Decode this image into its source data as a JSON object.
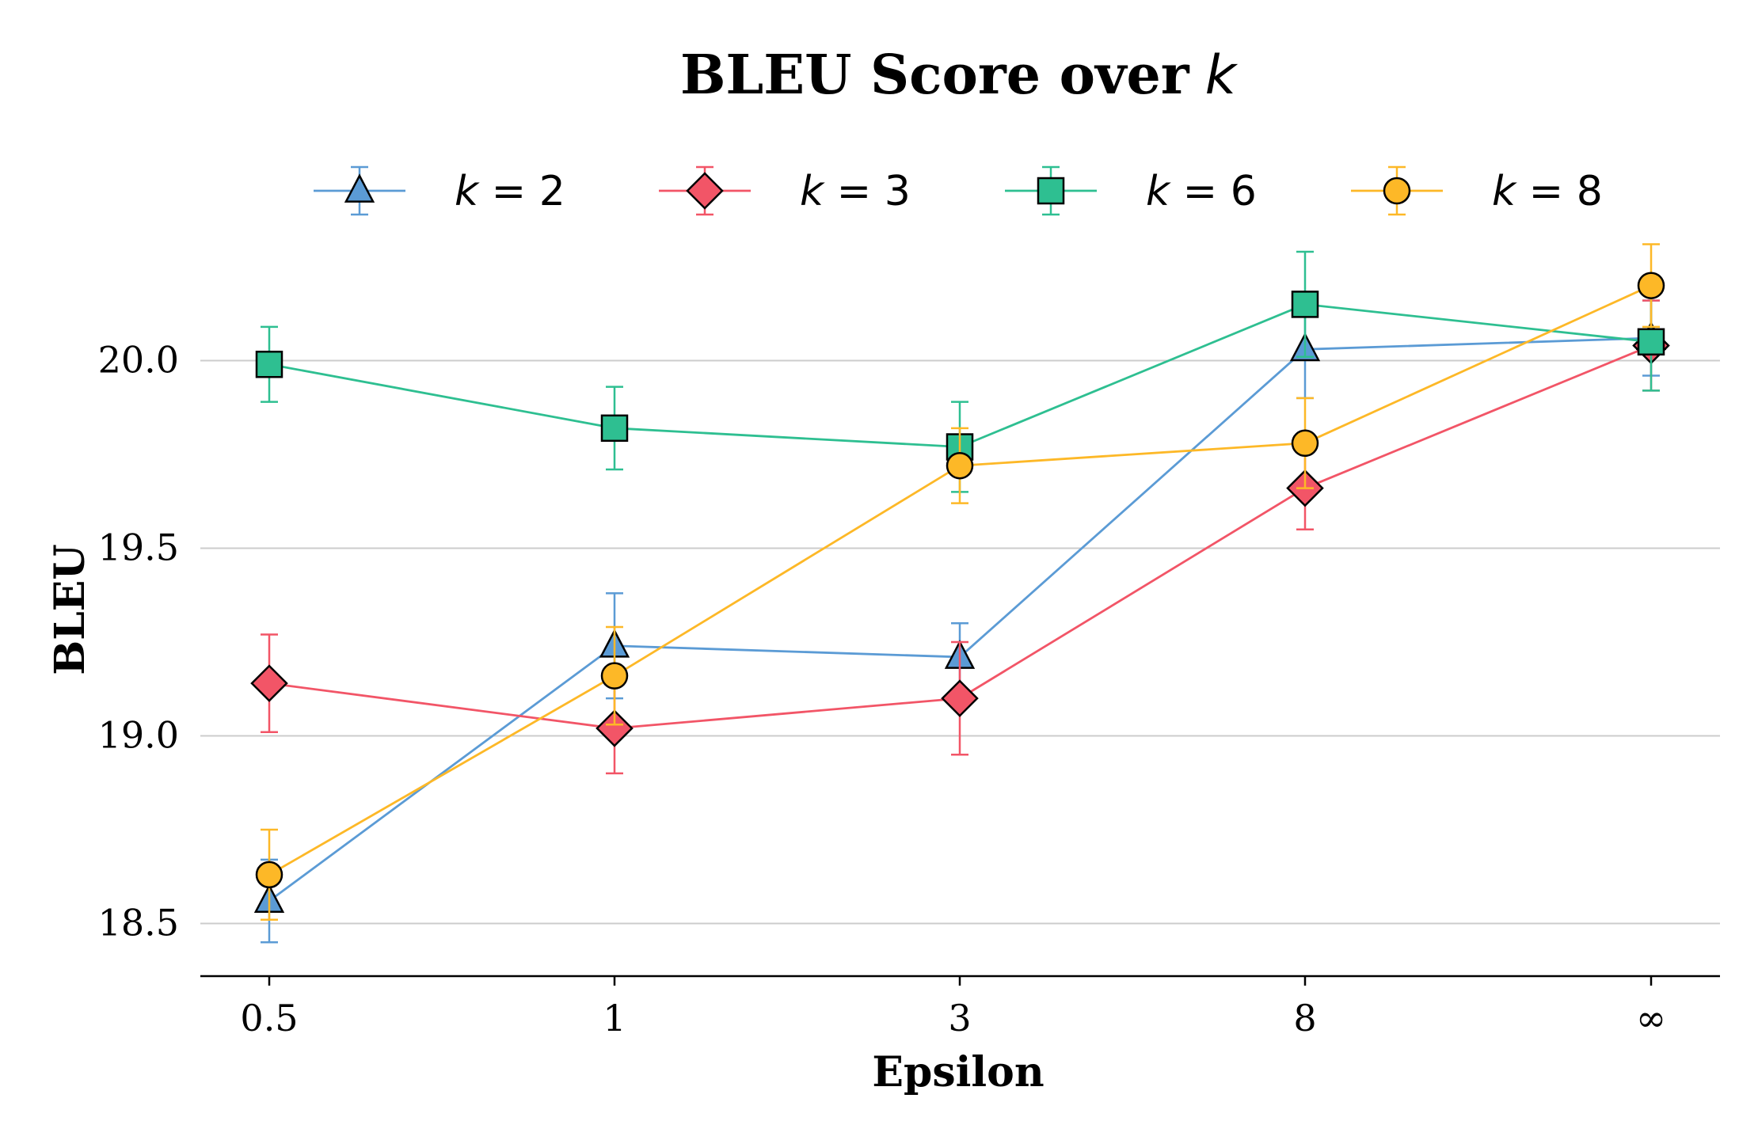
{
  "chart_data": {
    "type": "line",
    "title_main": "BLEU Score over",
    "title_var": "k",
    "xlabel": "Epsilon",
    "ylabel": "BLEU",
    "categories": [
      "0.5",
      "1",
      "3",
      "8",
      "∞"
    ],
    "ylim": [
      18.36,
      20.56
    ],
    "yticks": [
      18.5,
      19.0,
      19.5,
      20.0
    ],
    "ytick_labels": [
      "18.5",
      "19.0",
      "19.5",
      "20.0"
    ],
    "grid": "horizontal",
    "legend_position": "top",
    "series": [
      {
        "name": "k = 2",
        "var": "k",
        "num": "2",
        "color": "#5b9bd5",
        "marker": "triangle",
        "values": [
          18.56,
          19.24,
          19.21,
          20.03,
          20.06
        ],
        "errors": [
          0.11,
          0.14,
          0.09,
          0.13,
          0.1
        ]
      },
      {
        "name": "k = 3",
        "var": "k",
        "num": "3",
        "color": "#f25567",
        "marker": "diamond",
        "values": [
          19.14,
          19.02,
          19.1,
          19.66,
          20.04
        ],
        "errors": [
          0.13,
          0.12,
          0.15,
          0.11,
          0.12
        ]
      },
      {
        "name": "k = 6",
        "var": "k",
        "num": "6",
        "color": "#2ebf91",
        "marker": "square",
        "values": [
          19.99,
          19.82,
          19.77,
          20.15,
          20.05
        ],
        "errors": [
          0.1,
          0.11,
          0.12,
          0.14,
          0.13
        ]
      },
      {
        "name": "k = 8",
        "var": "k",
        "num": "8",
        "color": "#fdb827",
        "marker": "circle",
        "values": [
          18.63,
          19.16,
          19.72,
          19.78,
          20.2
        ],
        "errors": [
          0.12,
          0.13,
          0.1,
          0.12,
          0.11
        ]
      }
    ]
  }
}
